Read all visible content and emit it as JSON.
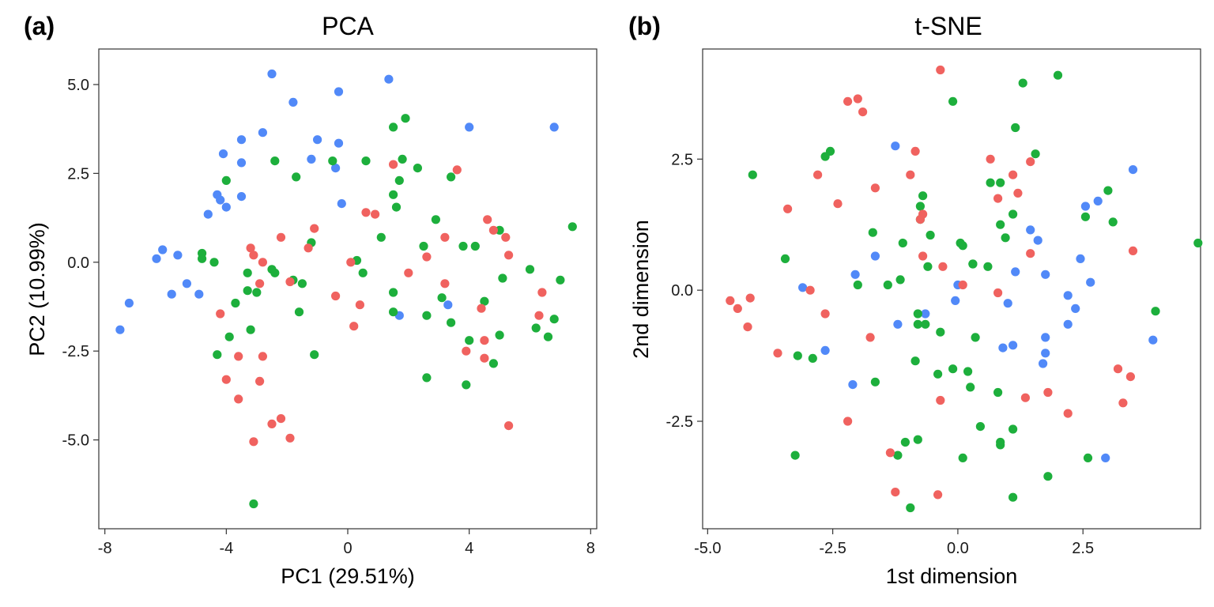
{
  "colors": {
    "red": "#F0625F",
    "green": "#1DAF3C",
    "blue": "#5189F8"
  },
  "chart_data": [
    {
      "type": "scatter",
      "tag": "(a)",
      "title": "PCA",
      "xlabel": "PC1 (29.51%)",
      "ylabel": "PC2 (10.99%)",
      "xlim": [
        -8.2,
        8.2
      ],
      "ylim": [
        -7.5,
        6.0
      ],
      "xticks": [
        -8,
        -4,
        0,
        4,
        8
      ],
      "xtick_labels": [
        "-8",
        "-4",
        "0",
        "4",
        "8"
      ],
      "yticks": [
        5.0,
        2.5,
        0.0,
        -2.5,
        -5.0
      ],
      "ytick_labels": [
        "5.0",
        "2.5",
        "0.0",
        "-2.5",
        "-5.0"
      ],
      "grid": false,
      "legend": "none",
      "series": [
        {
          "color": "blue",
          "points": [
            [
              -2.5,
              5.3
            ],
            [
              1.35,
              5.15
            ],
            [
              -1.8,
              4.5
            ],
            [
              -0.3,
              4.8
            ],
            [
              -2.8,
              3.65
            ],
            [
              -3.5,
              3.45
            ],
            [
              -1.0,
              3.45
            ],
            [
              -0.3,
              3.35
            ],
            [
              4.0,
              3.8
            ],
            [
              6.8,
              3.8
            ],
            [
              -4.1,
              3.05
            ],
            [
              -3.5,
              2.8
            ],
            [
              -1.2,
              2.9
            ],
            [
              -0.4,
              2.65
            ],
            [
              -4.3,
              1.9
            ],
            [
              -4.2,
              1.75
            ],
            [
              -3.5,
              1.85
            ],
            [
              -4.0,
              1.55
            ],
            [
              -4.6,
              1.35
            ],
            [
              -0.2,
              1.65
            ],
            [
              -6.1,
              0.35
            ],
            [
              -5.6,
              0.2
            ],
            [
              -6.3,
              0.1
            ],
            [
              -5.3,
              -0.6
            ],
            [
              -5.8,
              -0.9
            ],
            [
              -4.9,
              -0.9
            ],
            [
              -7.2,
              -1.15
            ],
            [
              -7.5,
              -1.9
            ],
            [
              3.3,
              -1.2
            ],
            [
              1.7,
              -1.5
            ]
          ]
        },
        {
          "color": "green",
          "points": [
            [
              1.9,
              4.05
            ],
            [
              1.5,
              3.8
            ],
            [
              -2.4,
              2.85
            ],
            [
              -1.7,
              2.4
            ],
            [
              -0.5,
              2.85
            ],
            [
              0.6,
              2.85
            ],
            [
              1.8,
              2.9
            ],
            [
              2.3,
              2.65
            ],
            [
              1.7,
              2.3
            ],
            [
              3.4,
              2.4
            ],
            [
              -4.0,
              2.3
            ],
            [
              1.5,
              1.9
            ],
            [
              1.6,
              1.55
            ],
            [
              2.9,
              1.2
            ],
            [
              5.0,
              0.9
            ],
            [
              7.4,
              1.0
            ],
            [
              1.1,
              0.7
            ],
            [
              -1.2,
              0.55
            ],
            [
              2.5,
              0.45
            ],
            [
              3.8,
              0.45
            ],
            [
              4.2,
              0.45
            ],
            [
              -4.8,
              0.25
            ],
            [
              -4.8,
              0.1
            ],
            [
              -4.4,
              0.0
            ],
            [
              0.3,
              0.05
            ],
            [
              -2.5,
              -0.2
            ],
            [
              -2.4,
              -0.3
            ],
            [
              -3.3,
              -0.3
            ],
            [
              0.5,
              -0.3
            ],
            [
              -1.8,
              -0.5
            ],
            [
              -1.5,
              -0.6
            ],
            [
              6.0,
              -0.2
            ],
            [
              5.1,
              -0.45
            ],
            [
              7.0,
              -0.5
            ],
            [
              -3.3,
              -0.8
            ],
            [
              -3.0,
              -0.85
            ],
            [
              1.5,
              -0.85
            ],
            [
              3.1,
              -1.0
            ],
            [
              4.5,
              -1.1
            ],
            [
              -3.7,
              -1.15
            ],
            [
              -1.6,
              -1.4
            ],
            [
              1.5,
              -1.4
            ],
            [
              2.6,
              -1.5
            ],
            [
              3.4,
              -1.7
            ],
            [
              6.8,
              -1.6
            ],
            [
              6.2,
              -1.85
            ],
            [
              -3.2,
              -1.9
            ],
            [
              5.0,
              -2.05
            ],
            [
              6.6,
              -2.1
            ],
            [
              -3.9,
              -2.1
            ],
            [
              4.0,
              -2.2
            ],
            [
              -4.3,
              -2.6
            ],
            [
              -1.1,
              -2.6
            ],
            [
              4.8,
              -2.85
            ],
            [
              2.6,
              -3.25
            ],
            [
              3.9,
              -3.45
            ],
            [
              -3.1,
              -6.8
            ]
          ]
        },
        {
          "color": "red",
          "points": [
            [
              3.6,
              2.6
            ],
            [
              1.5,
              2.75
            ],
            [
              0.6,
              1.4
            ],
            [
              0.9,
              1.35
            ],
            [
              4.6,
              1.2
            ],
            [
              4.8,
              0.9
            ],
            [
              5.2,
              0.7
            ],
            [
              3.2,
              0.7
            ],
            [
              -1.1,
              0.95
            ],
            [
              -2.2,
              0.7
            ],
            [
              -1.3,
              0.4
            ],
            [
              -3.1,
              0.2
            ],
            [
              -2.8,
              0.0
            ],
            [
              -3.2,
              0.4
            ],
            [
              2.6,
              0.15
            ],
            [
              5.3,
              0.2
            ],
            [
              0.1,
              0.0
            ],
            [
              -2.9,
              -0.6
            ],
            [
              -1.9,
              -0.55
            ],
            [
              2.0,
              -0.3
            ],
            [
              3.2,
              -0.6
            ],
            [
              6.4,
              -0.85
            ],
            [
              -0.4,
              -0.95
            ],
            [
              0.4,
              -1.2
            ],
            [
              4.4,
              -1.3
            ],
            [
              -4.2,
              -1.45
            ],
            [
              6.3,
              -1.5
            ],
            [
              0.2,
              -1.8
            ],
            [
              4.5,
              -2.2
            ],
            [
              3.9,
              -2.5
            ],
            [
              -2.8,
              -2.65
            ],
            [
              -3.6,
              -2.65
            ],
            [
              4.5,
              -2.7
            ],
            [
              -4.0,
              -3.3
            ],
            [
              -2.9,
              -3.35
            ],
            [
              -3.6,
              -3.85
            ],
            [
              -2.2,
              -4.4
            ],
            [
              -2.5,
              -4.55
            ],
            [
              -1.9,
              -4.95
            ],
            [
              -3.1,
              -5.05
            ],
            [
              5.3,
              -4.6
            ]
          ]
        }
      ]
    },
    {
      "type": "scatter",
      "tag": "(b)",
      "title": "t-SNE",
      "xlabel": "1st dimension",
      "ylabel": "2nd dimension",
      "xlim": [
        -5.1,
        4.85
      ],
      "ylim": [
        -4.55,
        4.6
      ],
      "xticks": [
        -5.0,
        -2.5,
        0.0,
        2.5
      ],
      "xtick_labels": [
        "-5.0",
        "-2.5",
        "0.0",
        "2.5"
      ],
      "yticks": [
        2.5,
        0.0,
        -2.5
      ],
      "ytick_labels": [
        "2.5",
        "0.0",
        "-2.5"
      ],
      "grid": false,
      "legend": "none",
      "series": [
        {
          "color": "blue",
          "points": [
            [
              -1.25,
              2.75
            ],
            [
              3.5,
              2.3
            ],
            [
              2.8,
              1.7
            ],
            [
              2.55,
              1.6
            ],
            [
              1.45,
              1.15
            ],
            [
              1.6,
              0.95
            ],
            [
              -2.05,
              0.3
            ],
            [
              -1.65,
              0.65
            ],
            [
              1.15,
              0.35
            ],
            [
              1.75,
              0.3
            ],
            [
              2.45,
              0.6
            ],
            [
              2.65,
              0.15
            ],
            [
              -3.1,
              0.05
            ],
            [
              0.0,
              0.1
            ],
            [
              -0.05,
              -0.2
            ],
            [
              1.0,
              -0.25
            ],
            [
              2.2,
              -0.1
            ],
            [
              2.35,
              -0.35
            ],
            [
              -0.65,
              -0.45
            ],
            [
              -1.2,
              -0.65
            ],
            [
              2.2,
              -0.65
            ],
            [
              1.75,
              -0.9
            ],
            [
              3.9,
              -0.95
            ],
            [
              0.9,
              -1.1
            ],
            [
              1.1,
              -1.05
            ],
            [
              -2.65,
              -1.15
            ],
            [
              1.75,
              -1.2
            ],
            [
              1.7,
              -1.4
            ],
            [
              -2.1,
              -1.8
            ],
            [
              2.95,
              -3.2
            ]
          ]
        },
        {
          "color": "green",
          "points": [
            [
              1.3,
              3.95
            ],
            [
              2.0,
              4.1
            ],
            [
              -0.1,
              3.6
            ],
            [
              1.15,
              3.1
            ],
            [
              -2.55,
              2.65
            ],
            [
              -2.65,
              2.55
            ],
            [
              1.55,
              2.6
            ],
            [
              -4.1,
              2.2
            ],
            [
              0.65,
              2.05
            ],
            [
              0.85,
              2.05
            ],
            [
              -0.7,
              1.8
            ],
            [
              3.0,
              1.9
            ],
            [
              -0.75,
              1.6
            ],
            [
              1.1,
              1.45
            ],
            [
              2.55,
              1.4
            ],
            [
              -0.75,
              1.35
            ],
            [
              3.1,
              1.3
            ],
            [
              0.85,
              1.25
            ],
            [
              -1.7,
              1.1
            ],
            [
              -0.55,
              1.05
            ],
            [
              0.95,
              1.0
            ],
            [
              -1.1,
              0.9
            ],
            [
              0.05,
              0.9
            ],
            [
              0.1,
              0.85
            ],
            [
              4.8,
              0.9
            ],
            [
              -3.45,
              0.6
            ],
            [
              0.3,
              0.5
            ],
            [
              -0.6,
              0.45
            ],
            [
              0.6,
              0.45
            ],
            [
              0.3,
              0.5
            ],
            [
              -1.15,
              0.2
            ],
            [
              -1.4,
              0.1
            ],
            [
              -2.0,
              0.1
            ],
            [
              3.95,
              -0.4
            ],
            [
              -0.8,
              -0.45
            ],
            [
              -0.8,
              -0.65
            ],
            [
              -0.65,
              -0.65
            ],
            [
              -0.35,
              -0.8
            ],
            [
              0.35,
              -0.9
            ],
            [
              -1.65,
              -1.75
            ],
            [
              -2.9,
              -1.3
            ],
            [
              -3.2,
              -1.25
            ],
            [
              -0.85,
              -1.35
            ],
            [
              -0.1,
              -1.5
            ],
            [
              0.2,
              -1.55
            ],
            [
              -0.4,
              -1.6
            ],
            [
              0.25,
              -1.85
            ],
            [
              0.8,
              -1.95
            ],
            [
              0.45,
              -2.6
            ],
            [
              1.1,
              -2.65
            ],
            [
              -1.05,
              -2.9
            ],
            [
              -0.8,
              -2.85
            ],
            [
              0.85,
              -2.9
            ],
            [
              0.85,
              -2.95
            ],
            [
              -1.2,
              -3.15
            ],
            [
              0.1,
              -3.2
            ],
            [
              2.6,
              -3.2
            ],
            [
              -3.25,
              -3.15
            ],
            [
              1.8,
              -3.55
            ],
            [
              -0.95,
              -4.15
            ],
            [
              1.1,
              -3.95
            ]
          ]
        },
        {
          "color": "red",
          "points": [
            [
              -0.35,
              4.2
            ],
            [
              -2.2,
              3.6
            ],
            [
              -2.0,
              3.65
            ],
            [
              -1.9,
              3.4
            ],
            [
              -0.85,
              2.65
            ],
            [
              0.65,
              2.5
            ],
            [
              1.45,
              2.45
            ],
            [
              -0.95,
              2.2
            ],
            [
              -2.8,
              2.2
            ],
            [
              1.1,
              2.2
            ],
            [
              -1.65,
              1.95
            ],
            [
              1.2,
              1.85
            ],
            [
              0.8,
              1.75
            ],
            [
              -2.4,
              1.65
            ],
            [
              -3.4,
              1.55
            ],
            [
              -0.7,
              1.45
            ],
            [
              -0.75,
              1.35
            ],
            [
              3.5,
              0.75
            ],
            [
              1.45,
              0.7
            ],
            [
              -0.7,
              0.65
            ],
            [
              -0.3,
              0.45
            ],
            [
              0.1,
              0.1
            ],
            [
              -2.95,
              0.0
            ],
            [
              0.8,
              -0.05
            ],
            [
              -4.55,
              -0.2
            ],
            [
              -4.4,
              -0.35
            ],
            [
              -4.15,
              -0.15
            ],
            [
              -2.65,
              -0.45
            ],
            [
              -4.2,
              -0.7
            ],
            [
              -1.75,
              -0.9
            ],
            [
              -3.6,
              -1.2
            ],
            [
              3.2,
              -1.5
            ],
            [
              3.45,
              -1.65
            ],
            [
              1.8,
              -1.95
            ],
            [
              1.35,
              -2.05
            ],
            [
              -0.35,
              -2.1
            ],
            [
              3.3,
              -2.15
            ],
            [
              2.2,
              -2.35
            ],
            [
              -2.2,
              -2.5
            ],
            [
              -1.35,
              -3.1
            ],
            [
              -1.25,
              -3.85
            ],
            [
              -0.4,
              -3.9
            ]
          ]
        }
      ]
    }
  ]
}
